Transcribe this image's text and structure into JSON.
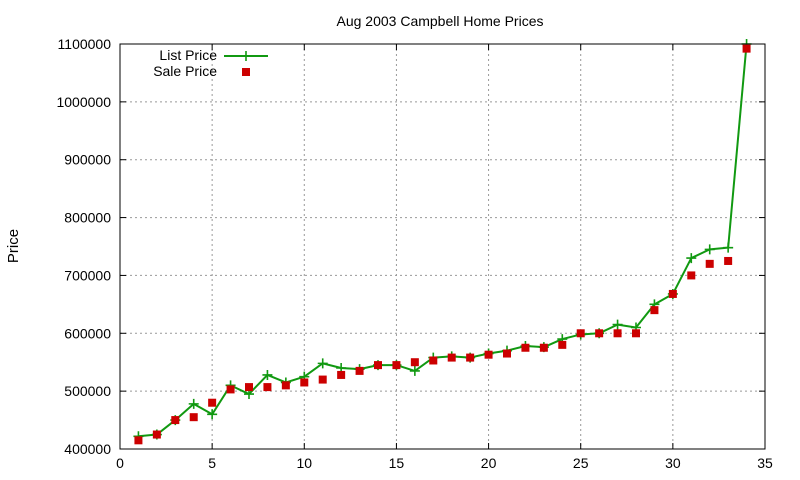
{
  "chart_data": {
    "type": "line",
    "title": "Aug 2003 Campbell Home Prices",
    "xlabel": "",
    "ylabel": "Price",
    "xlim": [
      0,
      35
    ],
    "ylim": [
      400000,
      1100000
    ],
    "x_ticks": [
      "0",
      "5",
      "10",
      "15",
      "20",
      "25",
      "30",
      "35"
    ],
    "y_ticks": [
      "400000",
      "500000",
      "600000",
      "700000",
      "800000",
      "900000",
      "1000000",
      "1100000"
    ],
    "grid": true,
    "legend_position": "top-left",
    "x": [
      1,
      2,
      3,
      4,
      5,
      6,
      7,
      8,
      9,
      10,
      11,
      12,
      13,
      14,
      15,
      16,
      17,
      18,
      19,
      20,
      21,
      22,
      23,
      24,
      25,
      26,
      27,
      28,
      29,
      30,
      31,
      32,
      33,
      34
    ],
    "series": [
      {
        "name": "List Price",
        "style": "line-with-plus-markers",
        "color": "#119911",
        "values": [
          422000,
          425000,
          450000,
          478000,
          460000,
          510000,
          495000,
          528000,
          515000,
          525000,
          548000,
          540000,
          538000,
          545000,
          545000,
          535000,
          558000,
          560000,
          558000,
          565000,
          570000,
          578000,
          576000,
          590000,
          598000,
          600000,
          615000,
          610000,
          650000,
          668000,
          730000,
          745000,
          748000,
          1100000
        ]
      },
      {
        "name": "Sale Price",
        "style": "square-markers",
        "color": "#cc0000",
        "values": [
          415000,
          425000,
          450000,
          455000,
          480000,
          503000,
          507000,
          507000,
          510000,
          515000,
          520000,
          528000,
          535000,
          545000,
          545000,
          550000,
          553000,
          558000,
          558000,
          563000,
          565000,
          575000,
          575000,
          580000,
          600000,
          600000,
          600000,
          600000,
          640000,
          668000,
          700000,
          720000,
          725000,
          1092000
        ]
      }
    ]
  }
}
